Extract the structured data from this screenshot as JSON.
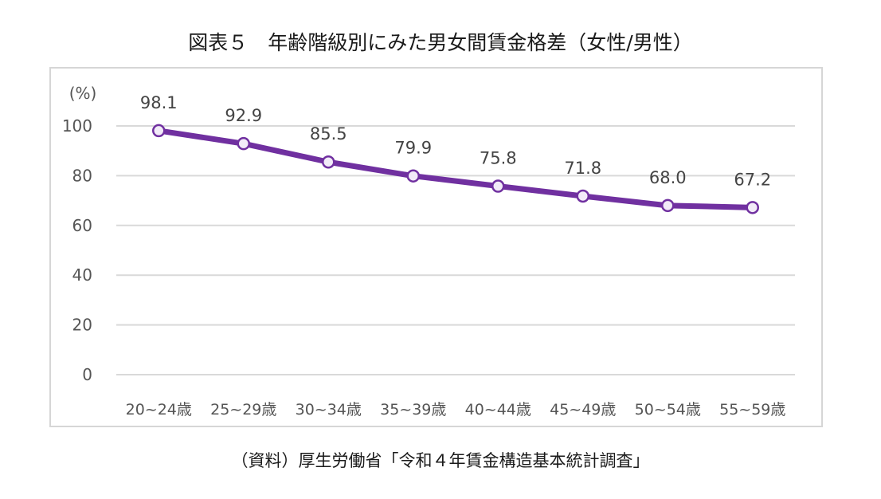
{
  "title": "図表５　年齢階級別にみた男女間賃金格差（女性/男性）",
  "source": "（資料）厚生労働省「令和４年賃金構造基本統計調査」",
  "chart_data": {
    "type": "line",
    "title": "図表５　年齢階級別にみた男女間賃金格差（女性/男性）",
    "ylabel": "(%)",
    "xlabel": "",
    "ylim": [
      0,
      100
    ],
    "yticks": [
      0,
      20,
      40,
      60,
      80,
      100
    ],
    "ytick_labels": [
      "0",
      "20",
      "40",
      "60",
      "80",
      "100"
    ],
    "grid": true,
    "legend": "none",
    "categories": [
      "20~24歳",
      "25~29歳",
      "30~34歳",
      "35~39歳",
      "40~44歳",
      "45~49歳",
      "50~54歳",
      "55~59歳"
    ],
    "series": [
      {
        "values": [
          98.1,
          92.9,
          85.5,
          79.9,
          75.8,
          71.8,
          68.0,
          67.2
        ],
        "data_labels": [
          "98.1",
          "92.9",
          "85.5",
          "79.9",
          "75.8",
          "71.8",
          "68.0",
          "67.2"
        ],
        "color": "#7030a0",
        "marker_fill": "#f2ebf8"
      }
    ],
    "gridline_color": "#d9d9d9"
  }
}
